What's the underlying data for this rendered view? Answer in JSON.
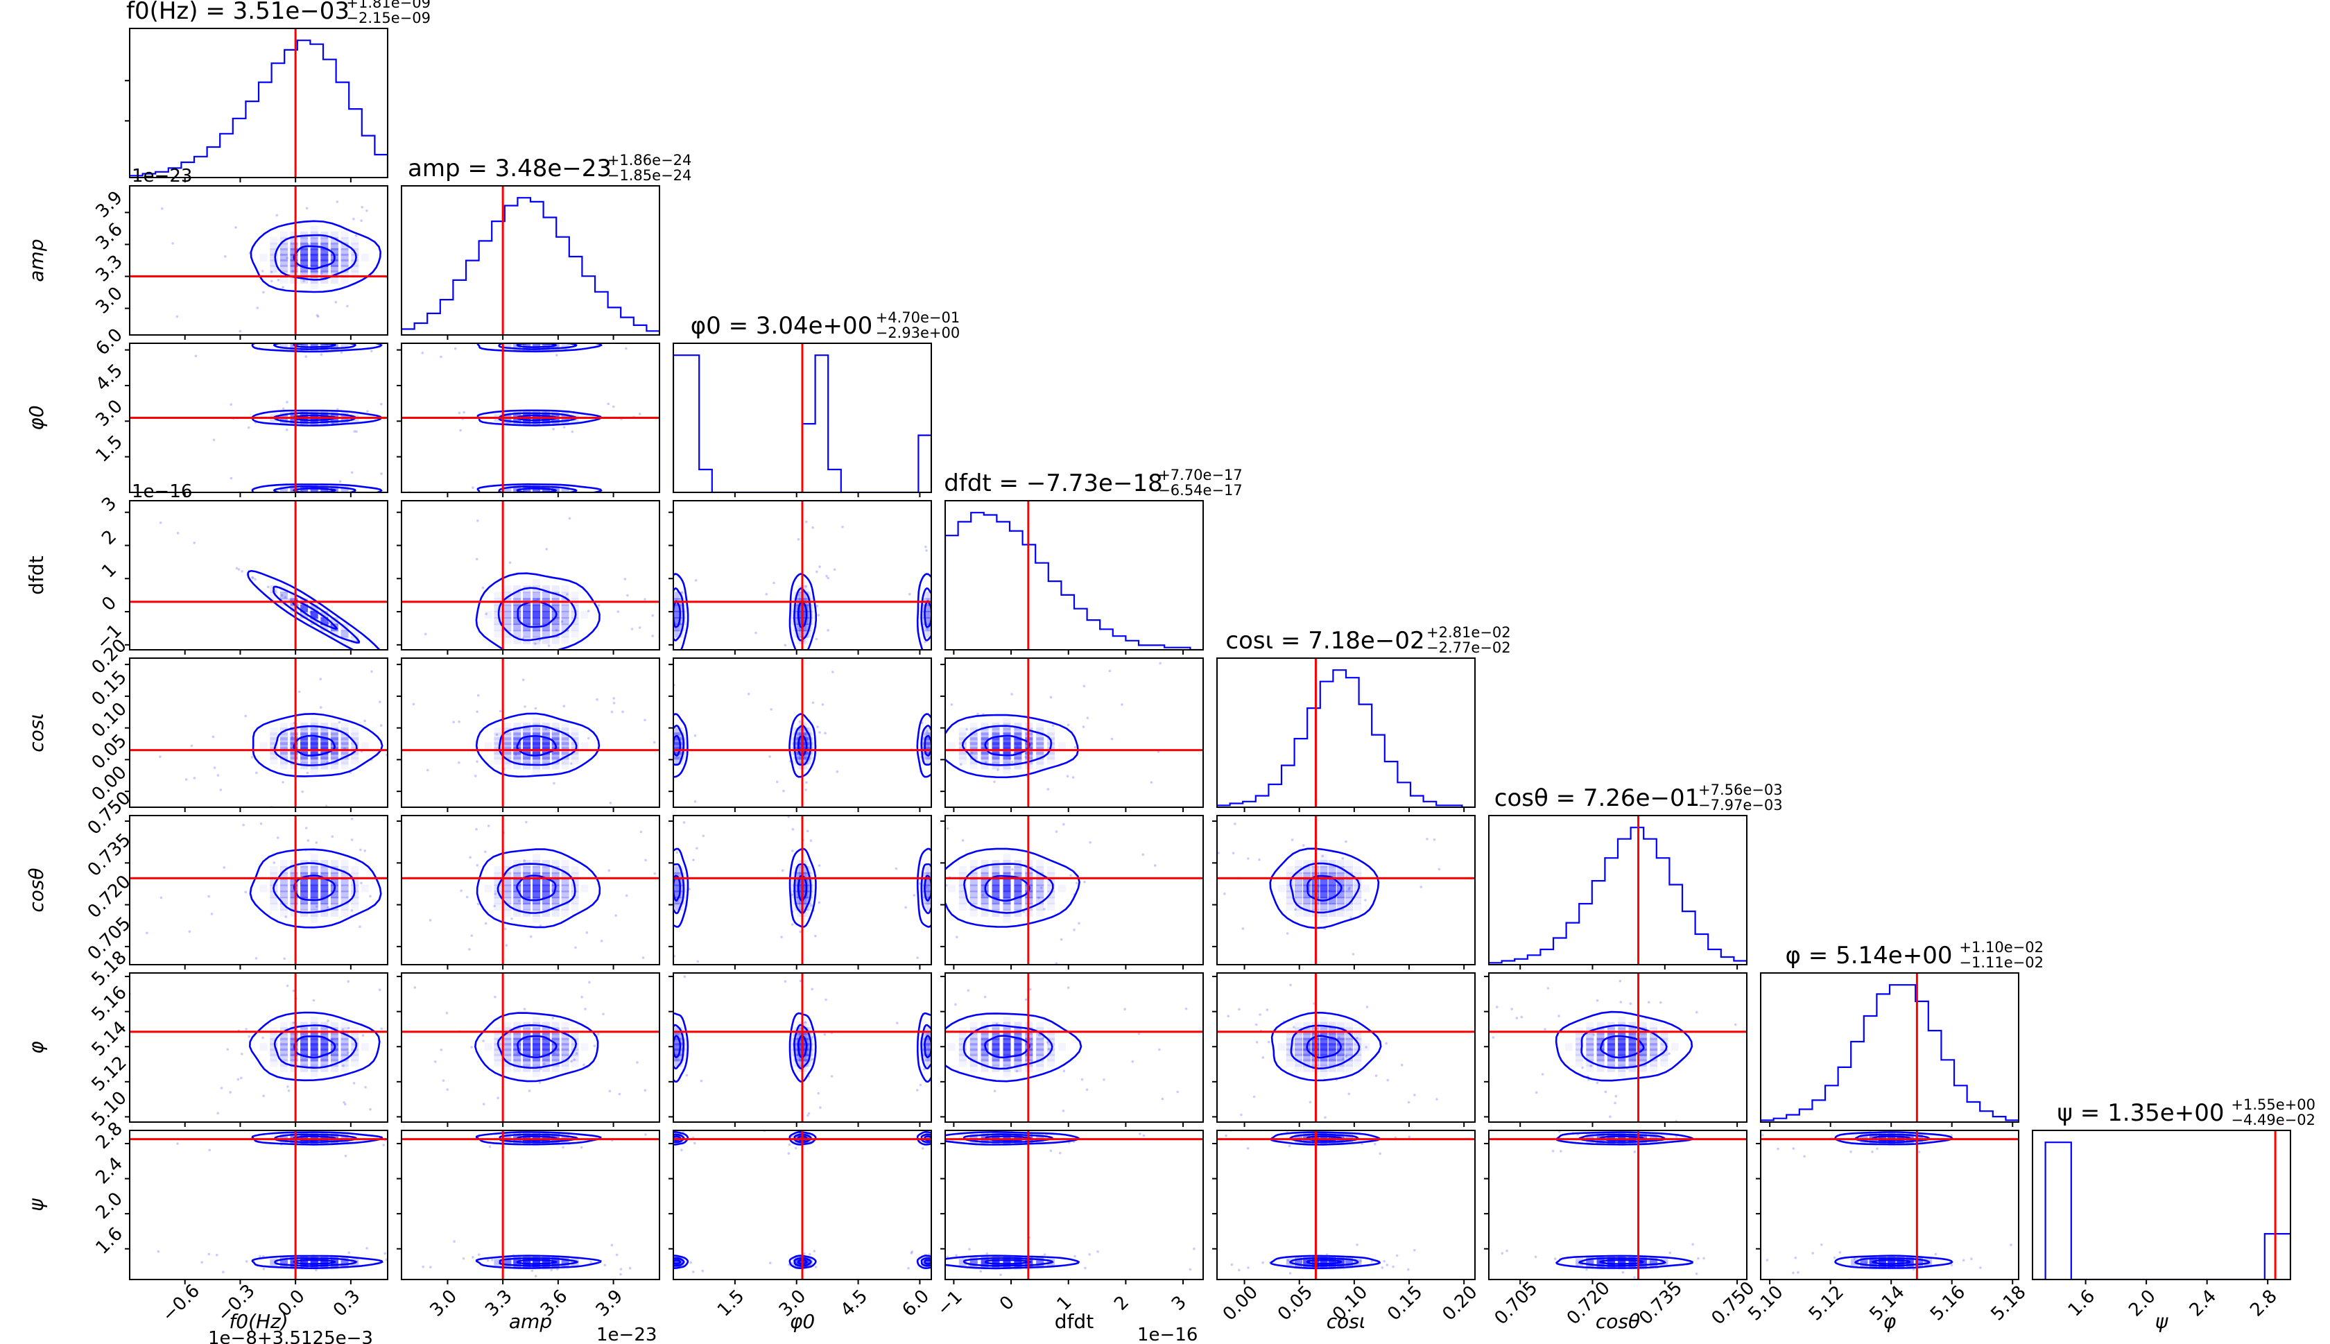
{
  "chart_data": {
    "type": "corner",
    "parameters": [
      {
        "key": "f0",
        "label": "f0(Hz)",
        "lim": [
          -0.9,
          0.5
        ],
        "ticks": [
          -0.6,
          -0.3,
          0.0,
          0.3
        ],
        "tick_labels": [
          "−0.6",
          "−0.3",
          "0.0",
          "0.3"
        ],
        "offset": "1e−8+3.5125e−3",
        "truth": 0.0,
        "title": "f0(Hz) = 3.51e−03",
        "title_plus": "+1.81e−09",
        "title_minus": "−2.15e−09"
      },
      {
        "key": "amp",
        "label": "amp",
        "lim": [
          2.75,
          4.15
        ],
        "ticks": [
          3.0,
          3.3,
          3.6,
          3.9
        ],
        "tick_labels": [
          "3.0",
          "3.3",
          "3.6",
          "3.9"
        ],
        "offset": "1e−23",
        "truth": 3.3,
        "title": "amp = 3.48e−23",
        "title_plus": "+1.86e−24",
        "title_minus": "−1.85e−24"
      },
      {
        "key": "phi0",
        "label": "φ0",
        "lim": [
          0.0,
          6.28
        ],
        "ticks": [
          1.5,
          3.0,
          4.5,
          6.0
        ],
        "tick_labels": [
          "1.5",
          "3.0",
          "4.5",
          "6.0"
        ],
        "offset": "",
        "truth": 3.14,
        "title": "φ0 = 3.04e+00",
        "title_plus": "+4.70e−01",
        "title_minus": "−2.93e+00"
      },
      {
        "key": "dfdt",
        "label": "dfdt",
        "lim": [
          -1.15,
          3.35
        ],
        "ticks": [
          -1,
          0,
          1,
          2,
          3
        ],
        "tick_labels": [
          "−1",
          "0",
          "1",
          "2",
          "3"
        ],
        "offset": "1e−16",
        "truth": 0.3,
        "title": "dfdt = −7.73e−18",
        "title_plus": "+7.70e−17",
        "title_minus": "−6.54e−17"
      },
      {
        "key": "cosi",
        "label": "cosι",
        "lim": [
          -0.025,
          0.21
        ],
        "ticks": [
          0.0,
          0.05,
          0.1,
          0.15,
          0.2
        ],
        "tick_labels": [
          "0.00",
          "0.05",
          "0.10",
          "0.15",
          "0.20"
        ],
        "offset": "",
        "truth": 0.065,
        "title": "cosι = 7.18e−02",
        "title_plus": "+2.81e−02",
        "title_minus": "−2.77e−02"
      },
      {
        "key": "costheta",
        "label": "cosθ",
        "lim": [
          0.6985,
          0.752
        ],
        "ticks": [
          0.705,
          0.72,
          0.735,
          0.75
        ],
        "tick_labels": [
          "0.705",
          "0.720",
          "0.735",
          "0.750"
        ],
        "offset": "",
        "truth": 0.7295,
        "title": "cosθ = 7.26e−01",
        "title_plus": "+7.56e−03",
        "title_minus": "−7.97e−03"
      },
      {
        "key": "phi",
        "label": "φ",
        "lim": [
          5.097,
          5.182
        ],
        "ticks": [
          5.1,
          5.12,
          5.14,
          5.16,
          5.18
        ],
        "tick_labels": [
          "5.10",
          "5.12",
          "5.14",
          "5.16",
          "5.18"
        ],
        "offset": "",
        "truth": 5.1485,
        "title": "φ = 5.14e+00",
        "title_plus": "+1.10e−02",
        "title_minus": "−1.11e−02"
      },
      {
        "key": "psi",
        "label": "ψ",
        "lim": [
          1.25,
          2.95
        ],
        "ticks": [
          1.6,
          2.0,
          2.4,
          2.8
        ],
        "tick_labels": [
          "1.6",
          "2.0",
          "2.4",
          "2.8"
        ],
        "offset": "",
        "truth": 2.85,
        "title": "ψ = 1.35e+00",
        "title_plus": "+1.55e+00",
        "title_minus": "−4.49e−02"
      }
    ],
    "histograms": [
      [
        1,
        2,
        3,
        5,
        8,
        11,
        16,
        23,
        31,
        40,
        50,
        60,
        67,
        72,
        70,
        62,
        50,
        36,
        22,
        12
      ],
      [
        3,
        6,
        11,
        18,
        28,
        38,
        48,
        58,
        66,
        70,
        68,
        60,
        50,
        40,
        30,
        22,
        14,
        9,
        5,
        2
      ],
      [
        12,
        12,
        2,
        0,
        0,
        0,
        0,
        0,
        0,
        0,
        6,
        12,
        2,
        0,
        0,
        0,
        0,
        0,
        0,
        5
      ],
      [
        50,
        56,
        60,
        59,
        56,
        52,
        46,
        38,
        30,
        24,
        18,
        13,
        9,
        6,
        4,
        2,
        2,
        1,
        1,
        0
      ],
      [
        1,
        2,
        3,
        6,
        12,
        22,
        36,
        52,
        66,
        72,
        68,
        54,
        38,
        24,
        13,
        6,
        3,
        1,
        1,
        0
      ],
      [
        1,
        2,
        3,
        5,
        8,
        14,
        22,
        32,
        44,
        56,
        66,
        72,
        66,
        56,
        42,
        28,
        16,
        8,
        4,
        2
      ],
      [
        1,
        2,
        4,
        7,
        12,
        20,
        30,
        44,
        58,
        70,
        75,
        75,
        66,
        50,
        34,
        20,
        11,
        6,
        3,
        1
      ],
      [
        0,
        12,
        12,
        0,
        0,
        0,
        0,
        0,
        0,
        0,
        0,
        0,
        0,
        0,
        0,
        0,
        0,
        0,
        4,
        4
      ]
    ],
    "correlations": {
      "f0-dfdt": -0.95
    },
    "colors": {
      "contour": "#0000ff",
      "density": "#2f2fff",
      "truth": "#ff0000"
    }
  }
}
